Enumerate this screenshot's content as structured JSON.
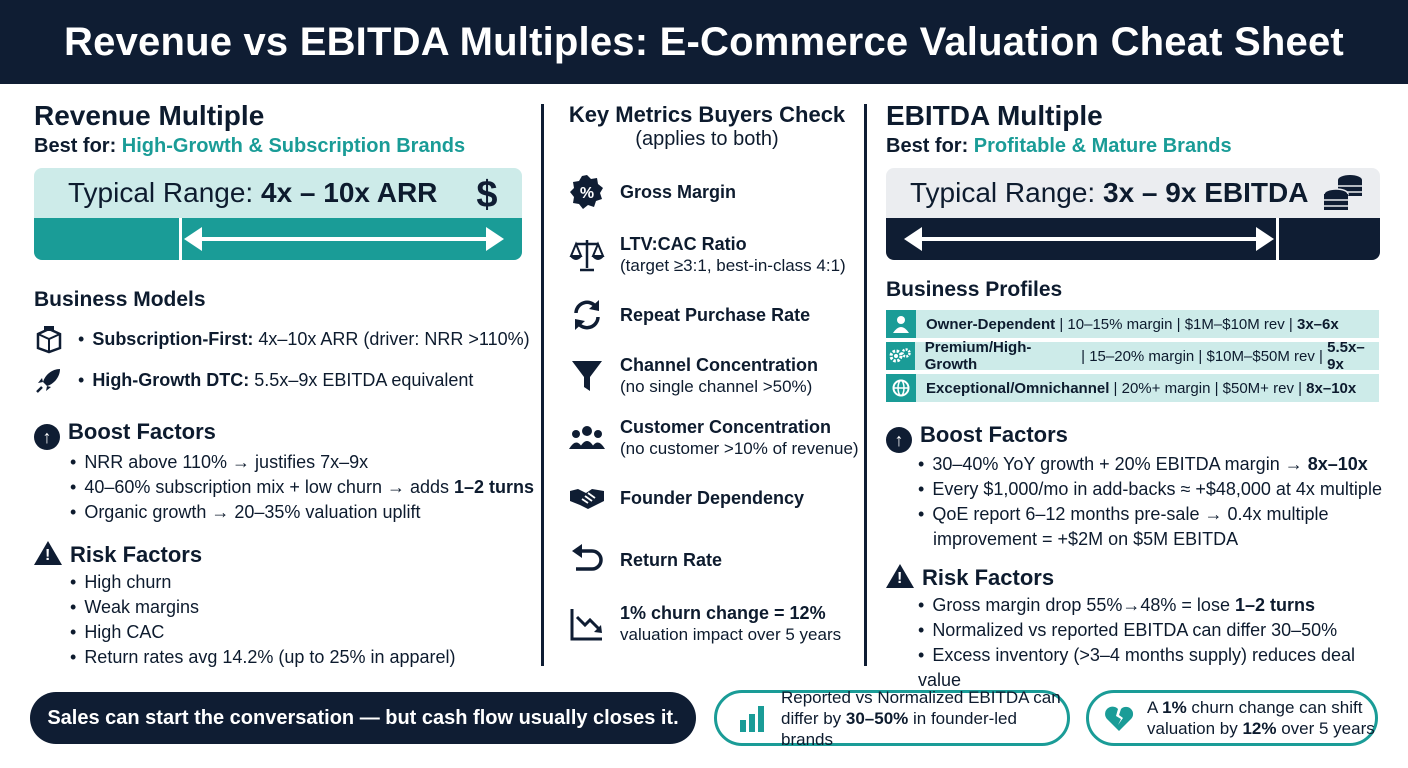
{
  "title": "Revenue vs EBITDA Multiples: E-Commerce Valuation Cheat Sheet",
  "left": {
    "heading": "Revenue Multiple",
    "best_for_label": "Best for:",
    "best_for_value": "High-Growth & Subscription Brands",
    "range_label": "Typical Range:",
    "range_value": "4x – 10x ARR",
    "range_icon": "dollar-icon",
    "models_heading": "Business Models",
    "models": [
      {
        "icon": "box-icon",
        "label": "Subscription-First:",
        "text": "4x–10x ARR (driver: NRR >110%)"
      },
      {
        "icon": "rocket-icon",
        "label": "High-Growth DTC:",
        "text": "5.5x–9x EBITDA equivalent"
      }
    ],
    "boost_heading": "Boost Factors",
    "boost": [
      {
        "pre": "NRR above 110% → justifies 7x–9x",
        "bold": "",
        "post": ""
      },
      {
        "pre": "40–60% subscription mix + low churn → adds ",
        "bold": "1–2 turns",
        "post": ""
      },
      {
        "pre": "Organic growth → 20–35% valuation uplift",
        "bold": "",
        "post": ""
      }
    ],
    "risk_heading": "Risk Factors",
    "risks": [
      "High churn",
      "Weak margins",
      "High CAC",
      "Return rates avg 14.2% (up to 25% in apparel)"
    ]
  },
  "middle": {
    "heading": "Key Metrics Buyers Check",
    "subheading": "(applies to both)",
    "metrics": [
      {
        "icon": "percent-badge-icon",
        "title": "Gross Margin",
        "sub": ""
      },
      {
        "icon": "scale-icon",
        "title": "LTV:CAC Ratio",
        "sub": "(target ≥3:1, best-in-class 4:1)"
      },
      {
        "icon": "refresh-icon",
        "title": "Repeat Purchase Rate",
        "sub": ""
      },
      {
        "icon": "funnel-icon",
        "title": "Channel Concentration",
        "sub": "(no single channel >50%)"
      },
      {
        "icon": "people-icon",
        "title": "Customer Concentration",
        "sub": "(no customer >10% of revenue)"
      },
      {
        "icon": "handshake-icon",
        "title": "Founder Dependency",
        "sub": ""
      },
      {
        "icon": "return-arrow-icon",
        "title": "Return Rate",
        "sub": ""
      },
      {
        "icon": "trend-down-icon",
        "title": "1% churn change = 12%",
        "sub": "valuation impact over 5 years"
      }
    ]
  },
  "right": {
    "heading": "EBITDA Multiple",
    "best_for_label": "Best for:",
    "best_for_value": "Profitable & Mature Brands",
    "range_label": "Typical Range:",
    "range_value": "3x – 9x EBITDA",
    "range_icon": "coins-icon",
    "profiles_heading": "Business Profiles",
    "profiles": [
      {
        "icon": "person-icon",
        "name": "Owner-Dependent",
        "details": " | 10–15% margin | $1M–$10M rev | ",
        "multiple": "3x–6x"
      },
      {
        "icon": "gears-icon",
        "name": "Premium/High-Growth",
        "details": " | 15–20% margin | $10M–$50M rev | ",
        "multiple": "5.5x–9x"
      },
      {
        "icon": "globe-icon",
        "name": "Exceptional/Omnichannel",
        "details": " | 20%+ margin | $50M+ rev | ",
        "multiple": "8x–10x"
      }
    ],
    "boost_heading": "Boost Factors",
    "boost": [
      {
        "pre": "30–40% YoY growth + 20% EBITDA margin → ",
        "bold": "8x–10x",
        "post": ""
      },
      {
        "pre": "Every $1,000/mo in add-backs ≈ +$48,000 at 4x multiple",
        "bold": "",
        "post": ""
      },
      {
        "pre": "QoE report 6–12 months pre-sale → 0.4x multiple improvement = +$2M on $5M EBITDA",
        "bold": "",
        "post": ""
      }
    ],
    "risk_heading": "Risk Factors",
    "risks": [
      {
        "pre": "Gross margin drop 55%→48% = lose ",
        "bold": "1–2 turns"
      },
      {
        "pre": "Normalized vs reported EBITDA can differ 30–50%",
        "bold": ""
      },
      {
        "pre": "Excess inventory (>3–4 months supply) reduces deal value",
        "bold": ""
      }
    ]
  },
  "footer": {
    "quote": "Sales can start the conversation — but cash flow usually closes it.",
    "callout1": {
      "icon": "bar-chart-icon",
      "line1": "Reported vs Normalized EBITDA can",
      "line2_pre": "differ by ",
      "line2_bold": "30–50%",
      "line2_post": " in founder-led brands"
    },
    "callout2": {
      "icon": "broken-heart-icon",
      "line1_pre": "A ",
      "line1_bold": "1%",
      "line1_post": " churn change can shift",
      "line2_pre": "valuation by ",
      "line2_bold": "12%",
      "line2_post": " over 5 years"
    }
  },
  "colors": {
    "navy": "#0f1d33",
    "teal": "#1a9c97",
    "light_teal": "#cdebe9",
    "light_gray": "#ebedf0"
  }
}
